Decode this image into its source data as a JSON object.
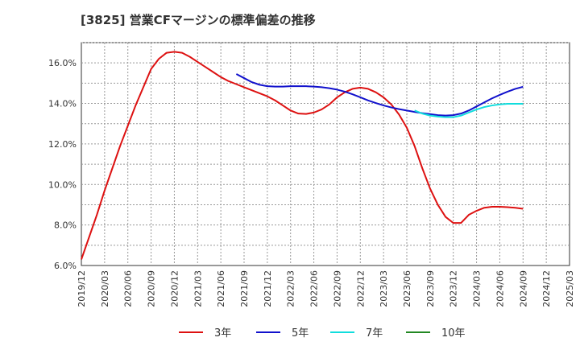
{
  "chart_data": {
    "type": "line",
    "title": "[3825]  営業CFマージンの標準偏差の推移",
    "xlabel": "",
    "ylabel": "",
    "ylim": [
      6.0,
      17.0
    ],
    "y_ticks": [
      "6.0%",
      "8.0%",
      "10.0%",
      "12.0%",
      "14.0%",
      "16.0%"
    ],
    "y_tick_values": [
      6,
      8,
      10,
      12,
      14,
      16
    ],
    "x_ticks": [
      "2019/12",
      "2020/03",
      "2020/06",
      "2020/09",
      "2020/12",
      "2021/03",
      "2021/06",
      "2021/09",
      "2021/12",
      "2022/03",
      "2022/06",
      "2022/09",
      "2022/12",
      "2023/03",
      "2023/06",
      "2023/09",
      "2023/12",
      "2024/03",
      "2024/06",
      "2024/09",
      "2024/12",
      "2025/03"
    ],
    "grid": true,
    "legend_position": "bottom",
    "series": [
      {
        "name": "3年",
        "color": "#dd1111",
        "points": [
          [
            "2019/12",
            6.3
          ],
          [
            "2020/01",
            7.4
          ],
          [
            "2020/02",
            8.5
          ],
          [
            "2020/03",
            9.7
          ],
          [
            "2020/04",
            10.8
          ],
          [
            "2020/05",
            11.9
          ],
          [
            "2020/06",
            12.9
          ],
          [
            "2020/07",
            13.9
          ],
          [
            "2020/08",
            14.8
          ],
          [
            "2020/09",
            15.7
          ],
          [
            "2020/10",
            16.2
          ],
          [
            "2020/11",
            16.5
          ],
          [
            "2020/12",
            16.55
          ],
          [
            "2021/01",
            16.5
          ],
          [
            "2021/02",
            16.3
          ],
          [
            "2021/03",
            16.05
          ],
          [
            "2021/04",
            15.8
          ],
          [
            "2021/05",
            15.55
          ],
          [
            "2021/06",
            15.3
          ],
          [
            "2021/07",
            15.1
          ],
          [
            "2021/08",
            14.95
          ],
          [
            "2021/09",
            14.8
          ],
          [
            "2021/10",
            14.65
          ],
          [
            "2021/11",
            14.5
          ],
          [
            "2021/12",
            14.35
          ],
          [
            "2022/01",
            14.15
          ],
          [
            "2022/02",
            13.9
          ],
          [
            "2022/03",
            13.65
          ],
          [
            "2022/04",
            13.5
          ],
          [
            "2022/05",
            13.48
          ],
          [
            "2022/06",
            13.55
          ],
          [
            "2022/07",
            13.7
          ],
          [
            "2022/08",
            13.95
          ],
          [
            "2022/09",
            14.3
          ],
          [
            "2022/10",
            14.55
          ],
          [
            "2022/11",
            14.72
          ],
          [
            "2022/12",
            14.78
          ],
          [
            "2023/01",
            14.72
          ],
          [
            "2023/02",
            14.55
          ],
          [
            "2023/03",
            14.3
          ],
          [
            "2023/04",
            13.95
          ],
          [
            "2023/05",
            13.45
          ],
          [
            "2023/06",
            12.8
          ],
          [
            "2023/07",
            11.9
          ],
          [
            "2023/08",
            10.8
          ],
          [
            "2023/09",
            9.8
          ],
          [
            "2023/10",
            9.0
          ],
          [
            "2023/11",
            8.4
          ],
          [
            "2023/12",
            8.1
          ],
          [
            "2024/01",
            8.1
          ],
          [
            "2024/02",
            8.5
          ],
          [
            "2024/03",
            8.7
          ],
          [
            "2024/04",
            8.85
          ],
          [
            "2024/05",
            8.9
          ],
          [
            "2024/06",
            8.9
          ],
          [
            "2024/07",
            8.88
          ],
          [
            "2024/08",
            8.85
          ],
          [
            "2024/09",
            8.8
          ]
        ]
      },
      {
        "name": "5年",
        "color": "#1111cc",
        "points": [
          [
            "2021/08",
            15.45
          ],
          [
            "2021/09",
            15.25
          ],
          [
            "2021/10",
            15.05
          ],
          [
            "2021/11",
            14.92
          ],
          [
            "2021/12",
            14.85
          ],
          [
            "2022/01",
            14.83
          ],
          [
            "2022/02",
            14.83
          ],
          [
            "2022/03",
            14.85
          ],
          [
            "2022/04",
            14.85
          ],
          [
            "2022/05",
            14.85
          ],
          [
            "2022/06",
            14.83
          ],
          [
            "2022/07",
            14.8
          ],
          [
            "2022/08",
            14.75
          ],
          [
            "2022/09",
            14.68
          ],
          [
            "2022/10",
            14.58
          ],
          [
            "2022/11",
            14.45
          ],
          [
            "2022/12",
            14.3
          ],
          [
            "2023/01",
            14.15
          ],
          [
            "2023/02",
            14.02
          ],
          [
            "2023/03",
            13.9
          ],
          [
            "2023/04",
            13.8
          ],
          [
            "2023/05",
            13.72
          ],
          [
            "2023/06",
            13.65
          ],
          [
            "2023/07",
            13.58
          ],
          [
            "2023/08",
            13.52
          ],
          [
            "2023/09",
            13.47
          ],
          [
            "2023/10",
            13.42
          ],
          [
            "2023/11",
            13.4
          ],
          [
            "2023/12",
            13.42
          ],
          [
            "2024/01",
            13.5
          ],
          [
            "2024/02",
            13.65
          ],
          [
            "2024/03",
            13.85
          ],
          [
            "2024/04",
            14.05
          ],
          [
            "2024/05",
            14.25
          ],
          [
            "2024/06",
            14.42
          ],
          [
            "2024/07",
            14.58
          ],
          [
            "2024/08",
            14.72
          ],
          [
            "2024/09",
            14.82
          ]
        ]
      },
      {
        "name": "7年",
        "color": "#11dddd",
        "points": [
          [
            "2023/07",
            13.65
          ],
          [
            "2023/08",
            13.5
          ],
          [
            "2023/09",
            13.4
          ],
          [
            "2023/10",
            13.35
          ],
          [
            "2023/11",
            13.32
          ],
          [
            "2023/12",
            13.32
          ],
          [
            "2024/01",
            13.4
          ],
          [
            "2024/02",
            13.55
          ],
          [
            "2024/03",
            13.7
          ],
          [
            "2024/04",
            13.82
          ],
          [
            "2024/05",
            13.9
          ],
          [
            "2024/06",
            13.95
          ],
          [
            "2024/07",
            13.98
          ],
          [
            "2024/08",
            13.98
          ],
          [
            "2024/09",
            13.98
          ]
        ]
      },
      {
        "name": "10年",
        "color": "#228822",
        "points": []
      }
    ]
  }
}
